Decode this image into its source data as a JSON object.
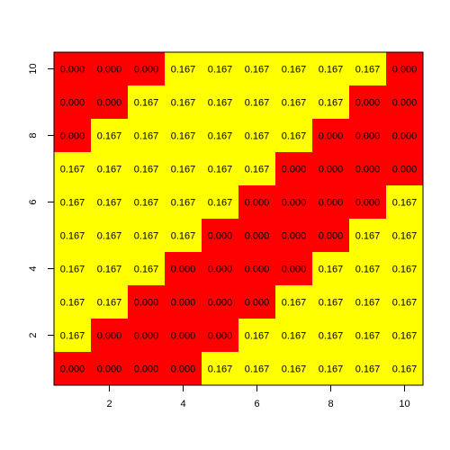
{
  "chart_data": {
    "type": "heatmap",
    "title": "",
    "xlabel": "",
    "ylabel": "",
    "x": [
      1,
      2,
      3,
      4,
      5,
      6,
      7,
      8,
      9,
      10
    ],
    "y": [
      1,
      2,
      3,
      4,
      5,
      6,
      7,
      8,
      9,
      10
    ],
    "xlim": [
      0.5,
      10.5
    ],
    "ylim": [
      0.5,
      10.5
    ],
    "x_ticks": [
      2,
      4,
      6,
      8,
      10
    ],
    "y_ticks": [
      2,
      4,
      6,
      8,
      10
    ],
    "grid": false,
    "colors": {
      "zero": "#ff0000",
      "nonzero": "#ffff00",
      "text": "#000000"
    },
    "matrix_top_to_bottom": [
      [
        "0.000",
        "0.000",
        "0.000",
        "0.167",
        "0.167",
        "0.167",
        "0.167",
        "0.167",
        "0.167",
        "0.000"
      ],
      [
        "0.000",
        "0.000",
        "0.167",
        "0.167",
        "0.167",
        "0.167",
        "0.167",
        "0.167",
        "0.000",
        "0.000"
      ],
      [
        "0.000",
        "0.167",
        "0.167",
        "0.167",
        "0.167",
        "0.167",
        "0.167",
        "0.000",
        "0.000",
        "0.000"
      ],
      [
        "0.167",
        "0.167",
        "0.167",
        "0.167",
        "0.167",
        "0.167",
        "0.000",
        "0.000",
        "0.000",
        "0.000"
      ],
      [
        "0.167",
        "0.167",
        "0.167",
        "0.167",
        "0.167",
        "0.000",
        "0.000",
        "0.000",
        "0.000",
        "0.167"
      ],
      [
        "0.167",
        "0.167",
        "0.167",
        "0.167",
        "0.000",
        "0.000",
        "0.000",
        "0.000",
        "0.167",
        "0.167"
      ],
      [
        "0.167",
        "0.167",
        "0.167",
        "0.000",
        "0.000",
        "0.000",
        "0.000",
        "0.167",
        "0.167",
        "0.167"
      ],
      [
        "0.167",
        "0.167",
        "0.000",
        "0.000",
        "0.000",
        "0.000",
        "0.167",
        "0.167",
        "0.167",
        "0.167"
      ],
      [
        "0.167",
        "0.000",
        "0.000",
        "0.000",
        "0.000",
        "0.167",
        "0.167",
        "0.167",
        "0.167",
        "0.167"
      ],
      [
        "0.000",
        "0.000",
        "0.000",
        "0.000",
        "0.167",
        "0.167",
        "0.167",
        "0.167",
        "0.167",
        "0.167"
      ]
    ]
  }
}
